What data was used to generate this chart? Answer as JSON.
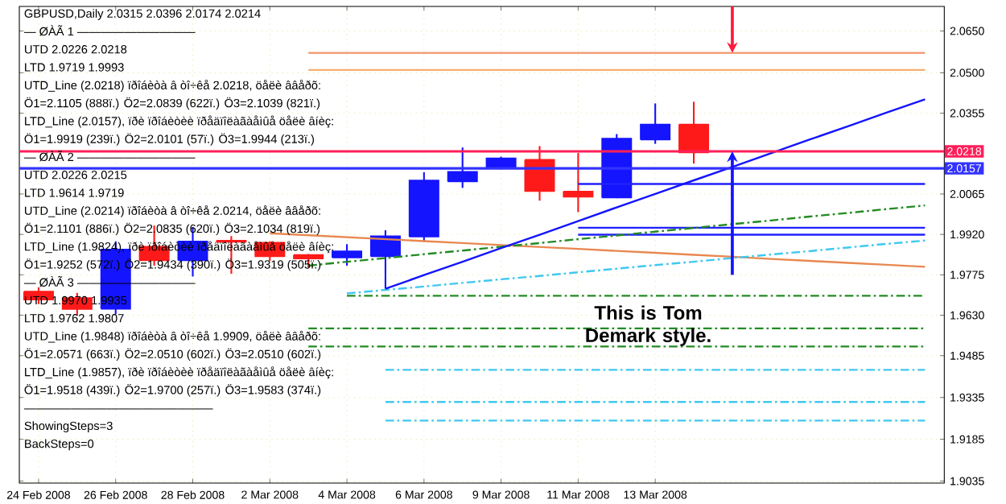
{
  "chart_data": {
    "type": "candlestick",
    "title": "GBPUSD,Daily  2.0315 2.0396 2.0174 2.0214",
    "categories": [
      "24 Feb 2008",
      null,
      "26 Feb 2008",
      null,
      "28 Feb 2008",
      null,
      "2 Mar 2008",
      null,
      "4 Mar 2008",
      null,
      "6 Mar 2008",
      null,
      "9 Mar 2008",
      null,
      "11 Mar 2008",
      null,
      "13 Mar 2008",
      null,
      null,
      null,
      null,
      null,
      null,
      null
    ],
    "ohlc": [
      [
        1.9715,
        1.973,
        1.967,
        1.9686
      ],
      [
        1.9692,
        1.971,
        1.9629,
        1.9652
      ],
      [
        1.9653,
        1.9895,
        1.9634,
        1.9866
      ],
      [
        1.9876,
        1.9952,
        1.9808,
        1.9827
      ],
      [
        1.9827,
        1.9947,
        1.9769,
        1.9895
      ],
      [
        1.9898,
        1.9914,
        1.9779,
        1.9893
      ],
      [
        1.9891,
        1.9895,
        1.9825,
        1.9841
      ],
      [
        1.9847,
        1.985,
        1.9802,
        1.9833
      ],
      [
        1.9837,
        1.9885,
        1.9808,
        1.986
      ],
      [
        1.9841,
        1.9935,
        1.9725,
        1.9914
      ],
      [
        1.9912,
        2.0143,
        1.9894,
        2.0114
      ],
      [
        2.011,
        2.0232,
        2.0087,
        2.0145
      ],
      [
        2.016,
        2.0199,
        2.0153,
        2.0193
      ],
      [
        2.0188,
        2.0237,
        2.0041,
        2.0075
      ],
      [
        2.0074,
        2.0212,
        2.0,
        2.0055
      ],
      [
        2.0052,
        2.028,
        2.005,
        2.0264
      ],
      [
        2.026,
        2.039,
        2.0245,
        2.0315
      ],
      [
        2.0315,
        2.0396,
        2.0174,
        2.0214
      ],
      null,
      null,
      null,
      null,
      null,
      null
    ],
    "colors": [
      "#ff1a1a",
      "#ff1a1a",
      "#1414ff",
      "#ff1a1a",
      "#1414ff",
      "#ff1a1a",
      "#ff1a1a",
      "#ff1a1a",
      "#1414ff",
      "#1414ff",
      "#1414ff",
      "#1414ff",
      "#1414ff",
      "#ff1a1a",
      "#ff1a1a",
      "#1414ff",
      "#1414ff",
      "#ff1a1a",
      null,
      null,
      null,
      null,
      null,
      null
    ],
    "series": [
      {
        "type": "line",
        "color": "#f2a07a",
        "line_style": "solid",
        "values": [
          null,
          null,
          null,
          null,
          null,
          null,
          null,
          2.0571,
          2.0571,
          2.0571,
          2.0571,
          2.0571,
          2.0571,
          2.0571,
          2.0571,
          2.0571,
          2.0571,
          2.0571,
          2.0571,
          2.0571,
          2.0571,
          2.0571,
          2.0571,
          2.0571
        ]
      },
      {
        "type": "line",
        "color": "#f5b070",
        "line_style": "solid",
        "values": [
          null,
          null,
          null,
          null,
          null,
          null,
          null,
          2.051,
          2.051,
          2.051,
          2.051,
          2.051,
          2.051,
          2.051,
          2.051,
          2.051,
          2.051,
          2.051,
          2.051,
          2.051,
          2.051,
          2.051,
          2.051,
          2.051
        ]
      },
      {
        "type": "line",
        "color": "#2020ff",
        "line_style": "solid",
        "values": [
          null,
          null,
          null,
          null,
          null,
          null,
          null,
          null,
          null,
          null,
          null,
          null,
          null,
          null,
          2.0101,
          2.0101,
          2.0101,
          2.0101,
          2.0101,
          2.0101,
          2.0101,
          2.0101,
          2.0101,
          2.0101
        ]
      },
      {
        "type": "line",
        "color": "#2020ff",
        "line_style": "solid",
        "values": [
          null,
          null,
          null,
          null,
          null,
          null,
          null,
          null,
          null,
          null,
          null,
          null,
          null,
          null,
          1.9944,
          1.9944,
          1.9944,
          1.9944,
          1.9944,
          1.9944,
          1.9944,
          1.9944,
          1.9944,
          1.9944
        ]
      },
      {
        "type": "line",
        "color": "#2020ff",
        "line_style": "solid",
        "values": [
          null,
          null,
          null,
          null,
          null,
          null,
          null,
          null,
          null,
          null,
          null,
          null,
          null,
          null,
          1.9919,
          1.9919,
          1.9919,
          1.9919,
          1.9919,
          1.9919,
          1.9919,
          1.9919,
          1.9919,
          1.9919
        ]
      },
      {
        "type": "line",
        "color": "#228b22",
        "line_style": "dashed",
        "values": [
          null,
          null,
          null,
          null,
          null,
          null,
          null,
          null,
          1.97,
          1.97,
          1.97,
          1.97,
          1.97,
          1.97,
          1.97,
          1.97,
          1.97,
          1.97,
          1.97,
          1.97,
          1.97,
          1.97,
          1.97,
          1.97
        ]
      },
      {
        "type": "line",
        "color": "#228b22",
        "line_style": "dashed",
        "values": [
          null,
          null,
          null,
          null,
          null,
          null,
          null,
          1.9583,
          1.9583,
          1.9583,
          1.9583,
          1.9583,
          1.9583,
          1.9583,
          1.9583,
          1.9583,
          1.9583,
          1.9583,
          1.9583,
          1.9583,
          1.9583,
          1.9583,
          1.9583,
          1.9583
        ]
      },
      {
        "type": "line",
        "color": "#228b22",
        "line_style": "dashed",
        "values": [
          null,
          null,
          null,
          null,
          null,
          null,
          null,
          1.9518,
          1.9518,
          1.9518,
          1.9518,
          1.9518,
          1.9518,
          1.9518,
          1.9518,
          1.9518,
          1.9518,
          1.9518,
          1.9518,
          1.9518,
          1.9518,
          1.9518,
          1.9518,
          1.9518
        ]
      },
      {
        "type": "line",
        "color": "#40c8f0",
        "line_style": "dashed",
        "values": [
          null,
          null,
          null,
          null,
          null,
          null,
          null,
          null,
          null,
          1.9434,
          1.9434,
          1.9434,
          1.9434,
          1.9434,
          1.9434,
          1.9434,
          1.9434,
          1.9434,
          1.9434,
          1.9434,
          1.9434,
          1.9434,
          1.9434,
          1.9434
        ]
      },
      {
        "type": "line",
        "color": "#40c8f0",
        "line_style": "dashed",
        "values": [
          null,
          null,
          null,
          null,
          null,
          null,
          null,
          null,
          null,
          1.9319,
          1.9319,
          1.9319,
          1.9319,
          1.9319,
          1.9319,
          1.9319,
          1.9319,
          1.9319,
          1.9319,
          1.9319,
          1.9319,
          1.9319,
          1.9319,
          1.9319
        ]
      },
      {
        "type": "line",
        "color": "#40c8f0",
        "line_style": "dashed",
        "values": [
          null,
          null,
          null,
          null,
          null,
          null,
          null,
          null,
          null,
          1.9252,
          1.9252,
          1.9252,
          1.9252,
          1.9252,
          1.9252,
          1.9252,
          1.9252,
          1.9252,
          1.9252,
          1.9252,
          1.9252,
          1.9252,
          1.9252,
          1.9252
        ]
      },
      {
        "type": "line",
        "color": "#e88850",
        "line_style": "solid",
        "values": [
          null,
          null,
          null,
          null,
          null,
          null,
          1.9924,
          1.9917,
          1.991,
          1.9903,
          1.9896,
          1.9889,
          1.9882,
          1.9875,
          1.9868,
          1.9861,
          1.9854,
          1.9847,
          1.984,
          1.9832,
          1.9825,
          1.9818,
          1.9811,
          1.9804
        ]
      },
      {
        "type": "line",
        "color": "#228b22",
        "line_style": "dashed",
        "values": [
          null,
          null,
          null,
          null,
          null,
          null,
          null,
          1.9808,
          1.9822,
          1.9835,
          1.9849,
          1.9862,
          1.9876,
          1.9889,
          1.9903,
          1.9916,
          1.993,
          1.9943,
          1.9957,
          1.997,
          1.9984,
          1.9997,
          2.0011,
          2.0024
        ]
      },
      {
        "type": "line",
        "color": "#40c8f0",
        "line_style": "dashed",
        "values": [
          null,
          null,
          null,
          null,
          null,
          null,
          null,
          null,
          1.9708,
          1.9721,
          1.9733,
          1.9746,
          1.9759,
          1.9771,
          1.9784,
          1.9797,
          1.981,
          1.9822,
          1.9835,
          1.9848,
          1.986,
          1.9873,
          1.9886,
          1.9898
        ]
      },
      {
        "type": "line",
        "color": "#1414ff",
        "line_style": "solid",
        "values": [
          null,
          null,
          null,
          null,
          null,
          null,
          null,
          null,
          null,
          1.9725,
          1.9774,
          1.9822,
          1.9871,
          1.9919,
          1.9968,
          2.0017,
          2.0065,
          2.0114,
          2.0162,
          2.0211,
          2.026,
          2.0308,
          2.0357,
          2.0405
        ]
      }
    ],
    "ref_lines": [
      {
        "axis": "y",
        "value": 2.0218,
        "label": "2.0218",
        "color": "#ff1f5a"
      },
      {
        "axis": "y",
        "value": 2.0157,
        "label": "2.0157",
        "color": "#3333ff"
      }
    ],
    "ylim": [
      1.9028,
      2.0738
    ],
    "yticks": [
      {
        "value": 2.065,
        "label": "2.0650"
      },
      {
        "value": 2.05,
        "label": "2.0500"
      },
      {
        "value": 2.0355,
        "label": "2.0355"
      },
      {
        "value": 2.0065,
        "label": "2.0065"
      },
      {
        "value": 1.992,
        "label": "1.9920"
      },
      {
        "value": 1.9775,
        "label": "1.9775"
      },
      {
        "value": 1.963,
        "label": "1.9630"
      },
      {
        "value": 1.9485,
        "label": "1.9485"
      },
      {
        "value": 1.9335,
        "label": "1.9335"
      },
      {
        "value": 1.9185,
        "label": "1.9185"
      },
      {
        "value": 1.9035,
        "label": "1.9035"
      }
    ],
    "grid": true,
    "annotations": [
      "—  ØÀÃ 1  ——————————",
      "UTD 2.0226  2.0218",
      "LTD  1.9719  1.9993",
      "UTD_Line (2.0218) ïðîáèòà â òî÷êå 2.0218, öåëè ââåðõ:",
      "Ö1=2.1105 (888ï.) Ö2=2.0839 (622ï.) Ö3=2.1039 (821ï.)",
      "LTD_Line (2.0157), ïðè ïðîáèòèè ïðåäïîëàãàåìûå öåëè âíèç:",
      "Ö1=1.9919 (239ï.) Ö2=2.0101 (57ï.) Ö3=1.9944 (213ï.)",
      "—  ØÀÃ 2  ——————————",
      "UTD 2.0226  2.0215",
      "LTD  1.9614  1.9719",
      "UTD_Line (2.0214) ïðîáèòà â òî÷êå 2.0214, öåëè ââåðõ:",
      "Ö1=2.1101 (886ï.) Ö2=2.0835 (620ï.) Ö3=2.1034 (819ï.)",
      "LTD_Line (1.9824), ïðè ïðîáèòèè ïðåäïîëàãàåìûå öåëè âíèç:",
      "Ö1=1.9252 (572ï.) Ö2=1.9434 (390ï.) Ö3=1.9319 (505ï.)",
      "—  ØÀÃ 3  ——————————",
      "UTD 1.9970  1.9935",
      "LTD  1.9762  1.9807",
      "UTD_Line (1.9848) ïðîáèòà â òî÷êå 1.9909, öåëè ââåðõ:",
      "Ö1=2.0571 (663ï.) Ö2=2.0510 (602ï.) Ö3=2.0510 (602ï.)",
      "LTD_Line (1.9857), ïðè ïðîáèòèè ïðåäïîëàãàåìûå öåëè âíèç:",
      "Ö1=1.9518 (439ï.) Ö2=1.9700 (257ï.) Ö3=1.9583 (374ï.)",
      "————————————————",
      "ShowingSteps=3",
      "BackSteps=0",
      "This is Tom Demark style."
    ]
  }
}
